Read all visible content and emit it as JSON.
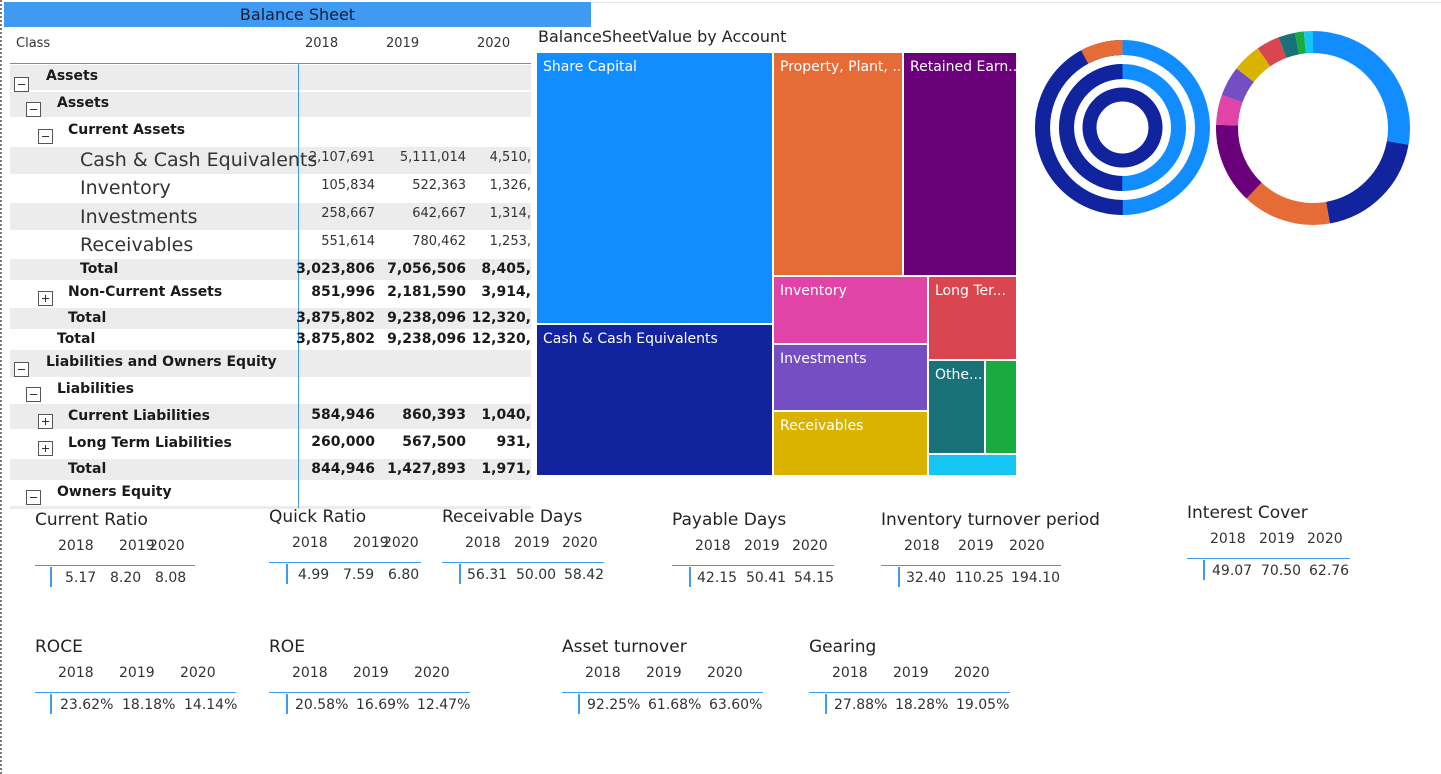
{
  "balance_sheet": {
    "title": "Balance Sheet",
    "columns": [
      "Class",
      "2018",
      "2019",
      "2020"
    ],
    "rows": [
      {
        "label": "Assets",
        "v": [
          "",
          "",
          ""
        ]
      },
      {
        "label": "Assets",
        "v": [
          "",
          "",
          ""
        ]
      },
      {
        "label": "Current Assets",
        "v": [
          "",
          "",
          ""
        ]
      },
      {
        "label": "Cash & Cash Equivalents",
        "v": [
          "2,107,691",
          "5,111,014",
          "4,510,"
        ]
      },
      {
        "label": "Inventory",
        "v": [
          "105,834",
          "522,363",
          "1,326,"
        ]
      },
      {
        "label": "Investments",
        "v": [
          "258,667",
          "642,667",
          "1,314,"
        ]
      },
      {
        "label": "Receivables",
        "v": [
          "551,614",
          "780,462",
          "1,253,"
        ]
      },
      {
        "label": "Total",
        "v": [
          "3,023,806",
          "7,056,506",
          "8,405,"
        ]
      },
      {
        "label": "Non-Current Assets",
        "v": [
          "851,996",
          "2,181,590",
          "3,914,"
        ]
      },
      {
        "label": "Total",
        "v": [
          "3,875,802",
          "9,238,096",
          "12,320,"
        ]
      },
      {
        "label": "Total",
        "v": [
          "3,875,802",
          "9,238,096",
          "12,320,"
        ]
      },
      {
        "label": "Liabilities and Owners Equity",
        "v": [
          "",
          "",
          ""
        ]
      },
      {
        "label": "Liabilities",
        "v": [
          "",
          "",
          ""
        ]
      },
      {
        "label": "Current Liabilities",
        "v": [
          "584,946",
          "860,393",
          "1,040,"
        ]
      },
      {
        "label": "Long Term Liabilities",
        "v": [
          "260,000",
          "567,500",
          "931,"
        ]
      },
      {
        "label": "Total",
        "v": [
          "844,946",
          "1,427,893",
          "1,971,"
        ]
      },
      {
        "label": "Owners Equity",
        "v": [
          "",
          "",
          ""
        ]
      }
    ]
  },
  "treemap": {
    "title": "BalanceSheetValue by Account",
    "cells": [
      {
        "label": "Share Capital",
        "color": "#118dff"
      },
      {
        "label": "Cash & Cash Equivalents",
        "color": "#12239e"
      },
      {
        "label": "Property, Plant, ...",
        "color": "#e66c37"
      },
      {
        "label": "Retained Earn...",
        "color": "#6b007b"
      },
      {
        "label": "Inventory",
        "color": "#e044a7"
      },
      {
        "label": "Long Ter...",
        "color": "#d9464f"
      },
      {
        "label": "Investments",
        "color": "#744ec2"
      },
      {
        "label": "Othe...",
        "color": "#197278"
      },
      {
        "label": "",
        "color": "#1aab40"
      },
      {
        "label": "Receivables",
        "color": "#d9b300"
      },
      {
        "label": "",
        "color": "#15c6f4"
      }
    ]
  },
  "donut_colors": {
    "blue": "#118dff",
    "dark_blue": "#12239e",
    "orange": "#e66c37",
    "purple": "#6b007b",
    "pink": "#e044a7",
    "violet": "#744ec2",
    "gold": "#d9b300",
    "red": "#d9464f",
    "teal": "#197278",
    "green": "#1aab40",
    "cyan": "#15c6f4"
  },
  "ratios": [
    {
      "title": "Current Ratio",
      "years": [
        "2018",
        "2019",
        "2020"
      ],
      "values": [
        "5.17",
        "8.20",
        "8.08"
      ]
    },
    {
      "title": "Quick Ratio",
      "years": [
        "2018",
        "2019",
        "2020"
      ],
      "values": [
        "4.99",
        "7.59",
        "6.80"
      ]
    },
    {
      "title": "Receivable Days",
      "years": [
        "2018",
        "2019",
        "2020"
      ],
      "values": [
        "56.31",
        "50.00",
        "58.42"
      ]
    },
    {
      "title": "Payable Days",
      "years": [
        "2018",
        "2019",
        "2020"
      ],
      "values": [
        "42.15",
        "50.41",
        "54.15"
      ]
    },
    {
      "title": "Inventory turnover period",
      "years": [
        "2018",
        "2019",
        "2020"
      ],
      "values": [
        "32.40",
        "110.25",
        "194.10"
      ]
    },
    {
      "title": "Interest Cover",
      "years": [
        "2018",
        "2019",
        "2020"
      ],
      "values": [
        "49.07",
        "70.50",
        "62.76"
      ]
    },
    {
      "title": "ROCE",
      "years": [
        "2018",
        "2019",
        "2020"
      ],
      "values": [
        "23.62%",
        "18.18%",
        "14.14%"
      ]
    },
    {
      "title": "ROE",
      "years": [
        "2018",
        "2019",
        "2020"
      ],
      "values": [
        "20.58%",
        "16.69%",
        "12.47%"
      ]
    },
    {
      "title": "Asset turnover",
      "years": [
        "2018",
        "2019",
        "2020"
      ],
      "values": [
        "92.25%",
        "61.68%",
        "63.60%"
      ]
    },
    {
      "title": "Gearing",
      "years": [
        "2018",
        "2019",
        "2020"
      ],
      "values": [
        "27.88%",
        "18.28%",
        "19.05%"
      ]
    }
  ]
}
